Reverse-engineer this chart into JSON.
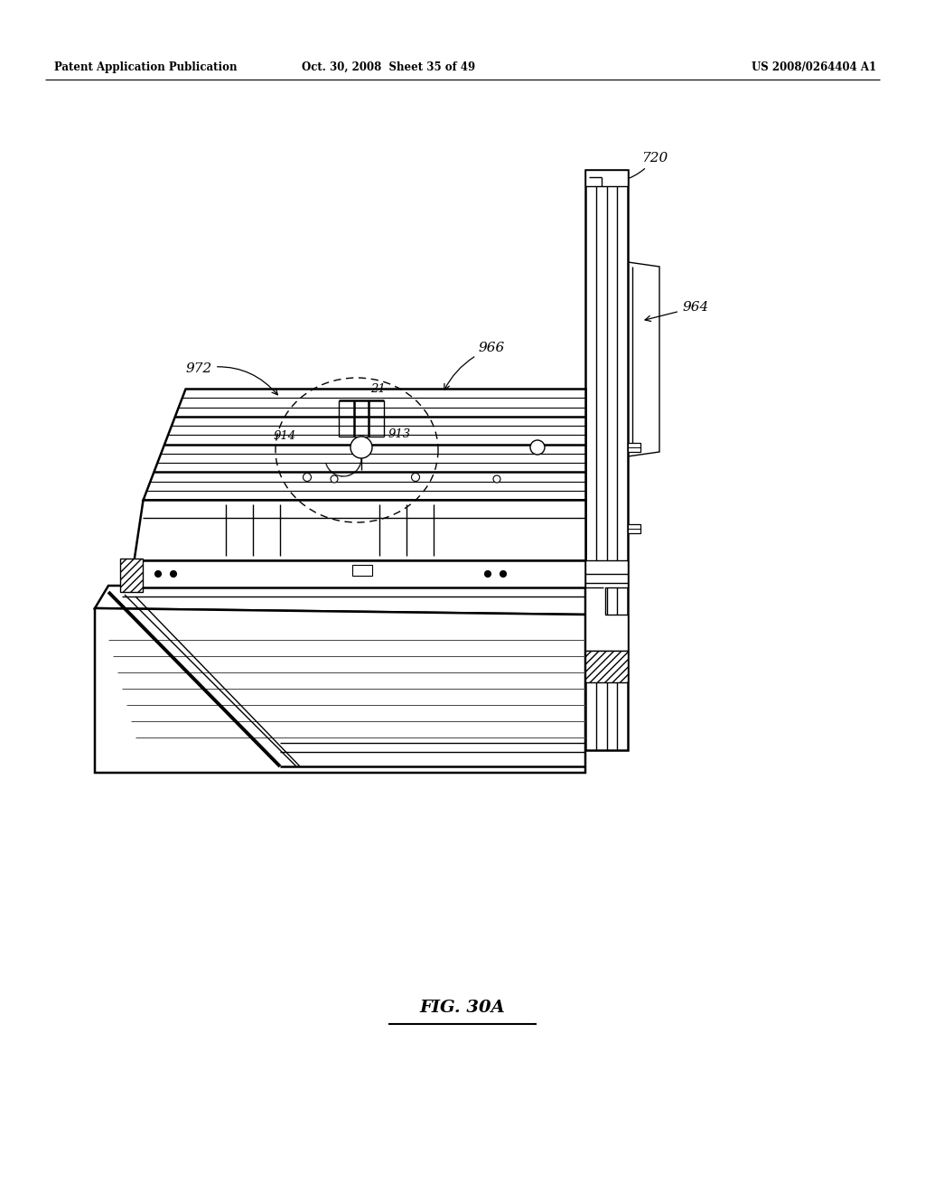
{
  "bg_color": "#ffffff",
  "header_left": "Patent Application Publication",
  "header_mid": "Oct. 30, 2008  Sheet 35 of 49",
  "header_right": "US 2008/0264404 A1",
  "figure_label": "FIG. 30A"
}
